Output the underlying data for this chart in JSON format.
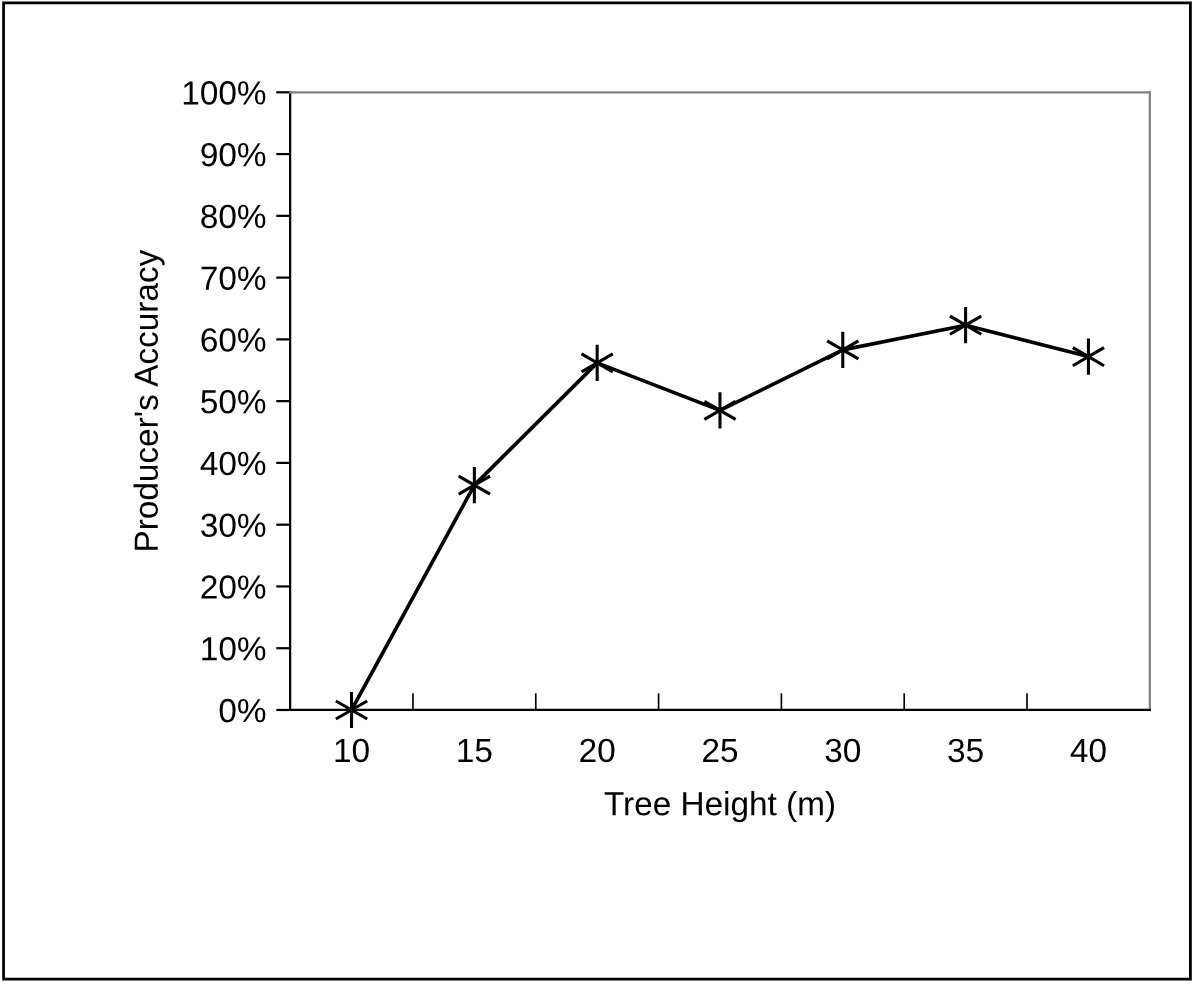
{
  "chart_data": {
    "type": "line",
    "xlabel": "Tree Height (m)",
    "ylabel": "Producer's Accuracy",
    "categories": [
      "10",
      "15",
      "20",
      "25",
      "30",
      "35",
      "40"
    ],
    "series": [
      {
        "color": "#000000",
        "values": [
          0,
          36.4,
          56.2,
          48.5,
          58.3,
          62.3,
          57.2
        ]
      }
    ],
    "ylim": [
      0,
      100
    ],
    "yticks": [
      {
        "value": 0,
        "label": "0%"
      },
      {
        "value": 10,
        "label": "10%"
      },
      {
        "value": 20,
        "label": "20%"
      },
      {
        "value": 30,
        "label": "30%"
      },
      {
        "value": 40,
        "label": "40%"
      },
      {
        "value": 50,
        "label": "50%"
      },
      {
        "value": 60,
        "label": "60%"
      },
      {
        "value": 70,
        "label": "70%"
      },
      {
        "value": 80,
        "label": "80%"
      },
      {
        "value": 90,
        "label": "90%"
      },
      {
        "value": 100,
        "label": "100%"
      }
    ],
    "marker": "cross",
    "line_style": "solid",
    "grid": false,
    "legend": false
  }
}
